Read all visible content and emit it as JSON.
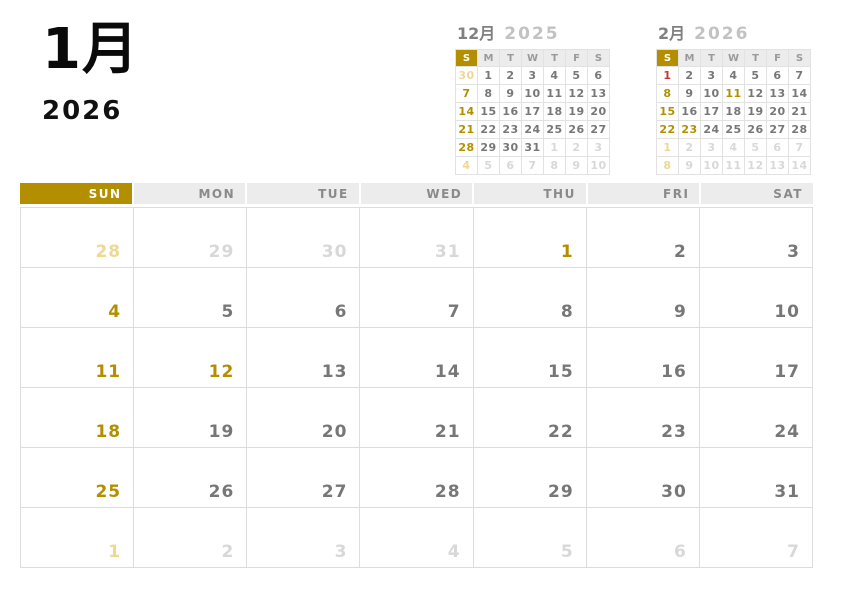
{
  "page": {
    "month_title": "1月",
    "year": "2026"
  },
  "color_key": {
    "g": "current-month-weekday",
    "o": "sunday-or-holiday-gold",
    "f": "outside-month",
    "fo": "outside-month-sunday",
    "r": "holiday-red"
  },
  "colors": {
    "gold": "#B38F00",
    "holiday_red": "#CC3333",
    "weekday_gray": "#777777",
    "outside_gray": "#D8D8D8",
    "outside_gold": "#F0D894",
    "header_bg": "#ECECEC",
    "header_text": "#8A8A8A",
    "grid_border": "#DCDCDC"
  },
  "mini_calendars": [
    {
      "name": "december-2025",
      "month_label": "12月",
      "year_label": "2025",
      "weekday_headers": [
        "S",
        "M",
        "T",
        "W",
        "T",
        "F",
        "S"
      ],
      "weeks": [
        [
          {
            "d": "30",
            "c": "fo"
          },
          {
            "d": "1",
            "c": "g"
          },
          {
            "d": "2",
            "c": "g"
          },
          {
            "d": "3",
            "c": "g"
          },
          {
            "d": "4",
            "c": "g"
          },
          {
            "d": "5",
            "c": "g"
          },
          {
            "d": "6",
            "c": "g"
          }
        ],
        [
          {
            "d": "7",
            "c": "o"
          },
          {
            "d": "8",
            "c": "g"
          },
          {
            "d": "9",
            "c": "g"
          },
          {
            "d": "10",
            "c": "g"
          },
          {
            "d": "11",
            "c": "g"
          },
          {
            "d": "12",
            "c": "g"
          },
          {
            "d": "13",
            "c": "g"
          }
        ],
        [
          {
            "d": "14",
            "c": "o"
          },
          {
            "d": "15",
            "c": "g"
          },
          {
            "d": "16",
            "c": "g"
          },
          {
            "d": "17",
            "c": "g"
          },
          {
            "d": "18",
            "c": "g"
          },
          {
            "d": "19",
            "c": "g"
          },
          {
            "d": "20",
            "c": "g"
          }
        ],
        [
          {
            "d": "21",
            "c": "o"
          },
          {
            "d": "22",
            "c": "g"
          },
          {
            "d": "23",
            "c": "g"
          },
          {
            "d": "24",
            "c": "g"
          },
          {
            "d": "25",
            "c": "g"
          },
          {
            "d": "26",
            "c": "g"
          },
          {
            "d": "27",
            "c": "g"
          }
        ],
        [
          {
            "d": "28",
            "c": "o"
          },
          {
            "d": "29",
            "c": "g"
          },
          {
            "d": "30",
            "c": "g"
          },
          {
            "d": "31",
            "c": "g"
          },
          {
            "d": "1",
            "c": "f"
          },
          {
            "d": "2",
            "c": "f"
          },
          {
            "d": "3",
            "c": "f"
          }
        ],
        [
          {
            "d": "4",
            "c": "fo"
          },
          {
            "d": "5",
            "c": "f"
          },
          {
            "d": "6",
            "c": "f"
          },
          {
            "d": "7",
            "c": "f"
          },
          {
            "d": "8",
            "c": "f"
          },
          {
            "d": "9",
            "c": "f"
          },
          {
            "d": "10",
            "c": "f"
          }
        ]
      ]
    },
    {
      "name": "february-2026",
      "month_label": "2月",
      "year_label": "2026",
      "weekday_headers": [
        "S",
        "M",
        "T",
        "W",
        "T",
        "F",
        "S"
      ],
      "weeks": [
        [
          {
            "d": "1",
            "c": "r"
          },
          {
            "d": "2",
            "c": "g"
          },
          {
            "d": "3",
            "c": "g"
          },
          {
            "d": "4",
            "c": "g"
          },
          {
            "d": "5",
            "c": "g"
          },
          {
            "d": "6",
            "c": "g"
          },
          {
            "d": "7",
            "c": "g"
          }
        ],
        [
          {
            "d": "8",
            "c": "o"
          },
          {
            "d": "9",
            "c": "g"
          },
          {
            "d": "10",
            "c": "g"
          },
          {
            "d": "11",
            "c": "o"
          },
          {
            "d": "12",
            "c": "g"
          },
          {
            "d": "13",
            "c": "g"
          },
          {
            "d": "14",
            "c": "g"
          }
        ],
        [
          {
            "d": "15",
            "c": "o"
          },
          {
            "d": "16",
            "c": "g"
          },
          {
            "d": "17",
            "c": "g"
          },
          {
            "d": "18",
            "c": "g"
          },
          {
            "d": "19",
            "c": "g"
          },
          {
            "d": "20",
            "c": "g"
          },
          {
            "d": "21",
            "c": "g"
          }
        ],
        [
          {
            "d": "22",
            "c": "o"
          },
          {
            "d": "23",
            "c": "o"
          },
          {
            "d": "24",
            "c": "g"
          },
          {
            "d": "25",
            "c": "g"
          },
          {
            "d": "26",
            "c": "g"
          },
          {
            "d": "27",
            "c": "g"
          },
          {
            "d": "28",
            "c": "g"
          }
        ],
        [
          {
            "d": "1",
            "c": "fo"
          },
          {
            "d": "2",
            "c": "f"
          },
          {
            "d": "3",
            "c": "f"
          },
          {
            "d": "4",
            "c": "f"
          },
          {
            "d": "5",
            "c": "f"
          },
          {
            "d": "6",
            "c": "f"
          },
          {
            "d": "7",
            "c": "f"
          }
        ],
        [
          {
            "d": "8",
            "c": "fo"
          },
          {
            "d": "9",
            "c": "f"
          },
          {
            "d": "10",
            "c": "f"
          },
          {
            "d": "11",
            "c": "f"
          },
          {
            "d": "12",
            "c": "f"
          },
          {
            "d": "13",
            "c": "f"
          },
          {
            "d": "14",
            "c": "f"
          }
        ]
      ]
    }
  ],
  "main_calendar": {
    "weekday_headers": [
      "SUN",
      "MON",
      "TUE",
      "WED",
      "THU",
      "FRI",
      "SAT"
    ],
    "weeks": [
      [
        {
          "d": "28",
          "c": "fo"
        },
        {
          "d": "29",
          "c": "f"
        },
        {
          "d": "30",
          "c": "f"
        },
        {
          "d": "31",
          "c": "f"
        },
        {
          "d": "1",
          "c": "o"
        },
        {
          "d": "2",
          "c": "g"
        },
        {
          "d": "3",
          "c": "g"
        }
      ],
      [
        {
          "d": "4",
          "c": "o"
        },
        {
          "d": "5",
          "c": "g"
        },
        {
          "d": "6",
          "c": "g"
        },
        {
          "d": "7",
          "c": "g"
        },
        {
          "d": "8",
          "c": "g"
        },
        {
          "d": "9",
          "c": "g"
        },
        {
          "d": "10",
          "c": "g"
        }
      ],
      [
        {
          "d": "11",
          "c": "o"
        },
        {
          "d": "12",
          "c": "o"
        },
        {
          "d": "13",
          "c": "g"
        },
        {
          "d": "14",
          "c": "g"
        },
        {
          "d": "15",
          "c": "g"
        },
        {
          "d": "16",
          "c": "g"
        },
        {
          "d": "17",
          "c": "g"
        }
      ],
      [
        {
          "d": "18",
          "c": "o"
        },
        {
          "d": "19",
          "c": "g"
        },
        {
          "d": "20",
          "c": "g"
        },
        {
          "d": "21",
          "c": "g"
        },
        {
          "d": "22",
          "c": "g"
        },
        {
          "d": "23",
          "c": "g"
        },
        {
          "d": "24",
          "c": "g"
        }
      ],
      [
        {
          "d": "25",
          "c": "o"
        },
        {
          "d": "26",
          "c": "g"
        },
        {
          "d": "27",
          "c": "g"
        },
        {
          "d": "28",
          "c": "g"
        },
        {
          "d": "29",
          "c": "g"
        },
        {
          "d": "30",
          "c": "g"
        },
        {
          "d": "31",
          "c": "g"
        }
      ],
      [
        {
          "d": "1",
          "c": "fo"
        },
        {
          "d": "2",
          "c": "f"
        },
        {
          "d": "3",
          "c": "f"
        },
        {
          "d": "4",
          "c": "f"
        },
        {
          "d": "5",
          "c": "f"
        },
        {
          "d": "6",
          "c": "f"
        },
        {
          "d": "7",
          "c": "f"
        }
      ]
    ]
  }
}
